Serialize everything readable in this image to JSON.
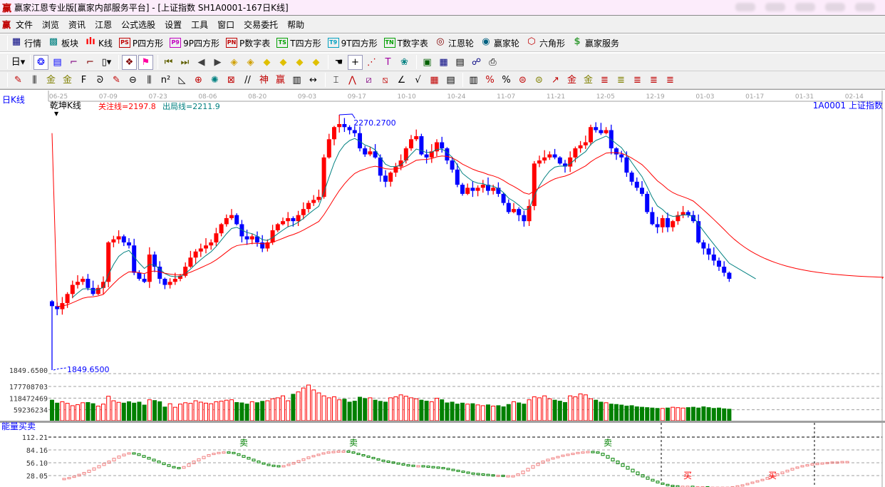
{
  "title": {
    "logo": "赢",
    "text": "赢家江恩专业版[赢家内部服务平台] - [上证指数  SH1A0001-167日K线]"
  },
  "menu": {
    "logo": "赢",
    "items": [
      "文件",
      "浏览",
      "资讯",
      "江恩",
      "公式选股",
      "设置",
      "工具",
      "窗口",
      "交易委托",
      "帮助"
    ]
  },
  "toolbar1": [
    {
      "icon": "quote-table-icon",
      "glyph": "▦",
      "color": "#000080",
      "label": "行情"
    },
    {
      "icon": "sector-icon",
      "glyph": "▩",
      "color": "#008080",
      "label": "板块"
    },
    {
      "icon": "kline-icon",
      "glyph": "ılı",
      "color": "#ff0000",
      "label": "K线"
    },
    {
      "icon": "ps-icon",
      "glyph": "PS",
      "color": "#c00000",
      "label": "P四方形"
    },
    {
      "icon": "p9-icon",
      "glyph": "P9",
      "color": "#c000c0",
      "label": "9P四方形"
    },
    {
      "icon": "pn-icon",
      "glyph": "PN",
      "color": "#c00000",
      "label": "P数字表"
    },
    {
      "icon": "ts-icon",
      "glyph": "TS",
      "color": "#00a000",
      "label": "T四方形"
    },
    {
      "icon": "t9-icon",
      "glyph": "T9",
      "color": "#00a0c0",
      "label": "9T四方形"
    },
    {
      "icon": "tn-icon",
      "glyph": "TN",
      "color": "#00a000",
      "label": "T数字表"
    },
    {
      "icon": "gann-wheel-icon",
      "glyph": "◎",
      "color": "#800000",
      "label": "江恩轮"
    },
    {
      "icon": "big-wheel-icon",
      "glyph": "◉",
      "color": "#006080",
      "label": "赢家轮"
    },
    {
      "icon": "hexagon-icon",
      "glyph": "⬡",
      "color": "#c00000",
      "label": "六角形"
    },
    {
      "icon": "dollar-icon",
      "glyph": "$",
      "color": "#40a040",
      "label": "赢家服务"
    }
  ],
  "toolbar2": [
    {
      "icon": "period-day-dropdown",
      "glyph": "日▾",
      "color": "#000"
    },
    {
      "icon": "sep"
    },
    {
      "icon": "pattern-icon",
      "glyph": "❂",
      "color": "#0000ff",
      "on": true
    },
    {
      "icon": "clipboard-icon",
      "glyph": "▤",
      "color": "#0000ff"
    },
    {
      "icon": "step3-icon",
      "glyph": "⌐",
      "color": "#800080"
    },
    {
      "icon": "step9-icon",
      "glyph": "⌐",
      "color": "#800000"
    },
    {
      "icon": "candle-dropdown",
      "glyph": "▯▾",
      "color": "#000"
    },
    {
      "icon": "sep"
    },
    {
      "icon": "map-icon",
      "glyph": "❖",
      "color": "#800000",
      "on": true
    },
    {
      "icon": "flag-icon",
      "glyph": "⚑",
      "color": "#ff00a0",
      "on": true
    },
    {
      "icon": "sep"
    },
    {
      "icon": "first-icon",
      "glyph": "⏮",
      "color": "#606000"
    },
    {
      "icon": "last-icon",
      "glyph": "⏭",
      "color": "#606000"
    },
    {
      "icon": "prev-icon",
      "glyph": "◀",
      "color": "#404040"
    },
    {
      "icon": "next-icon",
      "glyph": "▶",
      "color": "#404040"
    },
    {
      "icon": "move-left-icon",
      "glyph": "◈",
      "color": "#d0a000"
    },
    {
      "icon": "move-right-icon",
      "glyph": "◈",
      "color": "#d0a000"
    },
    {
      "icon": "expand-h-icon",
      "glyph": "◆",
      "color": "#e0c000"
    },
    {
      "icon": "shrink-icon",
      "glyph": "◆",
      "color": "#e0c000"
    },
    {
      "icon": "expand-v-icon",
      "glyph": "◆",
      "color": "#e0c000"
    },
    {
      "icon": "expand-all-icon",
      "glyph": "◆",
      "color": "#e0c000"
    },
    {
      "icon": "sep"
    },
    {
      "icon": "hand-icon",
      "glyph": "☚",
      "color": "#000"
    },
    {
      "icon": "crosshair-icon",
      "glyph": "+",
      "color": "#000",
      "on": true
    },
    {
      "icon": "point-line-icon",
      "glyph": "⋰",
      "color": "#c00000"
    },
    {
      "icon": "t-shape-icon",
      "glyph": "T",
      "color": "#a000a0"
    },
    {
      "icon": "brain-icon",
      "glyph": "❀",
      "color": "#008080"
    },
    {
      "icon": "sep"
    },
    {
      "icon": "calendar-icon",
      "glyph": "▣",
      "color": "#006000"
    },
    {
      "icon": "calculator-icon",
      "glyph": "▦",
      "color": "#000080"
    },
    {
      "icon": "notes-icon",
      "glyph": "▤",
      "color": "#000"
    },
    {
      "icon": "network-icon",
      "glyph": "☍",
      "color": "#000080"
    },
    {
      "icon": "print-icon",
      "glyph": "⎙",
      "color": "#000"
    }
  ],
  "toolbar3": [
    {
      "icon": "pen-icon",
      "glyph": "✎",
      "color": "#c00000"
    },
    {
      "icon": "lines-icon",
      "glyph": "⫼",
      "color": "#000"
    },
    {
      "icon": "gold-icon",
      "glyph": "金",
      "color": "#808000"
    },
    {
      "icon": "gold2-icon",
      "glyph": "金",
      "color": "#808000"
    },
    {
      "icon": "fib-icon",
      "glyph": "F",
      "color": "#000"
    },
    {
      "icon": "spiral-icon",
      "glyph": "ᘐ",
      "color": "#000"
    },
    {
      "icon": "pen2-icon",
      "glyph": "✎",
      "color": "#c00000"
    },
    {
      "icon": "circle-icon",
      "glyph": "⊖",
      "color": "#000"
    },
    {
      "icon": "lines2-icon",
      "glyph": "⫼",
      "color": "#000"
    },
    {
      "icon": "n2-icon",
      "glyph": "n²",
      "color": "#000"
    },
    {
      "icon": "triangle-icon",
      "glyph": "◺",
      "color": "#000"
    },
    {
      "icon": "target-icon",
      "glyph": "⊕",
      "color": "#c00000"
    },
    {
      "icon": "web-icon",
      "glyph": "✺",
      "color": "#008080"
    },
    {
      "icon": "box-web-icon",
      "glyph": "⊠",
      "color": "#c00000"
    },
    {
      "icon": "slash-icon",
      "glyph": "//",
      "color": "#000"
    },
    {
      "icon": "shen-icon",
      "glyph": "神",
      "color": "#c00000"
    },
    {
      "icon": "ying-icon",
      "glyph": "赢",
      "color": "#c00000"
    },
    {
      "icon": "ruler-icon",
      "glyph": "▥",
      "color": "#000"
    },
    {
      "icon": "width-icon",
      "glyph": "↔",
      "color": "#000"
    },
    {
      "icon": "sep"
    },
    {
      "icon": "box-icon",
      "glyph": "⌶",
      "color": "#000"
    },
    {
      "icon": "fan-icon",
      "glyph": "⋀",
      "color": "#c00000"
    },
    {
      "icon": "fan-box-icon",
      "glyph": "⧄",
      "color": "#800080"
    },
    {
      "icon": "fan-box2-icon",
      "glyph": "⧅",
      "color": "#c00000"
    },
    {
      "icon": "angle-icon",
      "glyph": "∠",
      "color": "#000"
    },
    {
      "icon": "v-icon",
      "glyph": "√",
      "color": "#000"
    },
    {
      "icon": "grid-icon",
      "glyph": "▦",
      "color": "#c00000"
    },
    {
      "icon": "bars-icon",
      "glyph": "▤",
      "color": "#000"
    },
    {
      "icon": "sep"
    },
    {
      "icon": "table-icon",
      "glyph": "▥",
      "color": "#000"
    },
    {
      "icon": "percent-slash-icon",
      "glyph": "%",
      "color": "#c00000"
    },
    {
      "icon": "percent-icon",
      "glyph": "%",
      "color": "#000"
    },
    {
      "icon": "ring-icon",
      "glyph": "⊜",
      "color": "#c00000"
    },
    {
      "icon": "ring2-icon",
      "glyph": "⊜",
      "color": "#808000"
    },
    {
      "icon": "arrow-up-icon",
      "glyph": "↗",
      "color": "#c00000"
    },
    {
      "icon": "gold3-icon",
      "glyph": "金",
      "color": "#c00000"
    },
    {
      "icon": "gold4-icon",
      "glyph": "金",
      "color": "#808000"
    },
    {
      "icon": "line-set-icon",
      "glyph": "≣",
      "color": "#c00000"
    },
    {
      "icon": "line-set2-icon",
      "glyph": "≣",
      "color": "#808000"
    },
    {
      "icon": "line-set3-icon",
      "glyph": "≣",
      "color": "#c00000"
    },
    {
      "icon": "line-set4-icon",
      "glyph": "≣",
      "color": "#c00000"
    },
    {
      "icon": "line-set5-icon",
      "glyph": "≣",
      "color": "#c00000"
    }
  ],
  "chart_header": {
    "period": "日K线",
    "indicator": "乾坤K线",
    "focus_line": "关注线=2197.8",
    "exit_line": "出局线=2211.9",
    "symbol": "1A0001  上证指数",
    "dates": [
      "06-25",
      "07-09",
      "07-23",
      "08-06",
      "08-20",
      "09-03",
      "09-17",
      "10-10",
      "10-24",
      "11-07",
      "11-21",
      "12-05",
      "12-19",
      "01-03",
      "01-17",
      "01-31",
      "02-14"
    ]
  },
  "colors": {
    "up": "#ff0000",
    "down": "#0000ff",
    "ma_short": "#008080",
    "ma_long": "#ff0000",
    "vol_up": "#ff0000",
    "vol_down": "#008000",
    "energy_up": "#f08080",
    "energy_down": "#008000",
    "accent": "#0000ff"
  },
  "chart_data": [
    {
      "type": "candlestick",
      "title": "乾坤K线",
      "high_label": "2270.2700",
      "low_label": "1849.6500",
      "left_tick": "1849.6500",
      "max": 2270.27,
      "min": 1849.65,
      "closes": [
        1955,
        1950,
        1960,
        1975,
        1990,
        1995,
        2000,
        1985,
        1975,
        1985,
        1995,
        2060,
        2065,
        2070,
        2060,
        2055,
        2010,
        2000,
        1995,
        2040,
        2020,
        2000,
        1990,
        1995,
        2000,
        2005,
        2020,
        2035,
        2045,
        2050,
        2055,
        2060,
        2075,
        2090,
        2100,
        2105,
        2090,
        2070,
        2065,
        2070,
        2060,
        2050,
        2060,
        2080,
        2090,
        2095,
        2100,
        2095,
        2105,
        2115,
        2125,
        2130,
        2135,
        2200,
        2230,
        2250,
        2255,
        2250,
        2245,
        2240,
        2215,
        2205,
        2210,
        2200,
        2170,
        2160,
        2175,
        2185,
        2195,
        2215,
        2230,
        2235,
        2205,
        2200,
        2210,
        2225,
        2215,
        2195,
        2180,
        2155,
        2140,
        2150,
        2145,
        2150,
        2155,
        2145,
        2150,
        2140,
        2125,
        2110,
        2115,
        2105,
        2095,
        2120,
        2190,
        2195,
        2200,
        2205,
        2200,
        2190,
        2185,
        2200,
        2215,
        2220,
        2225,
        2250,
        2245,
        2240,
        2245,
        2215,
        2205,
        2200,
        2175,
        2160,
        2150,
        2140,
        2110,
        2090,
        2085,
        2100,
        2085,
        2095,
        2105,
        2110,
        2105,
        2095,
        2060,
        2050,
        2040,
        2030,
        2020,
        2010,
        2000
      ]
    },
    {
      "type": "bar",
      "title": "",
      "y_ticks": [
        "177708703",
        "118472469",
        "59236234"
      ],
      "y_tick_values": [
        177708703,
        118472469,
        59236234
      ],
      "volumes_millions": [
        110,
        95,
        100,
        92,
        80,
        85,
        95,
        98,
        92,
        78,
        88,
        128,
        105,
        97,
        95,
        102,
        95,
        100,
        85,
        110,
        108,
        102,
        75,
        90,
        72,
        88,
        95,
        92,
        105,
        98,
        93,
        90,
        100,
        103,
        108,
        110,
        98,
        96,
        90,
        100,
        97,
        104,
        105,
        115,
        120,
        130,
        105,
        140,
        150,
        170,
        185,
        160,
        145,
        130,
        120,
        125,
        110,
        115,
        100,
        105,
        125,
        118,
        120,
        110,
        104,
        100,
        120,
        125,
        135,
        128,
        120,
        115,
        110,
        105,
        100,
        118,
        112,
        96,
        100,
        90,
        95,
        88,
        92,
        84,
        80,
        86,
        78,
        82,
        76,
        88,
        100,
        96,
        90,
        110,
        125,
        120,
        130,
        115,
        110,
        105,
        98,
        130,
        125,
        140,
        135,
        115,
        110,
        100,
        95,
        90,
        88,
        85,
        80,
        82,
        76,
        74,
        72,
        70,
        68,
        66,
        70,
        72,
        70,
        68,
        72,
        74,
        70,
        76,
        72,
        68,
        70,
        66,
        64
      ]
    },
    {
      "type": "bar",
      "title": "能量买卖",
      "y_ticks": [
        "112.21",
        "84.16",
        "56.10",
        "28.05"
      ],
      "y_tick_values": [
        112.21,
        84.16,
        56.1,
        28.05
      ],
      "values": [
        22,
        24,
        27,
        31,
        35,
        40,
        45,
        50,
        55,
        60,
        66,
        71,
        75,
        78,
        76,
        72,
        68,
        64,
        60,
        56,
        52,
        48,
        46,
        44,
        48,
        54,
        60,
        65,
        70,
        74,
        77,
        79,
        80,
        79,
        76,
        72,
        68,
        64,
        60,
        56,
        53,
        51,
        50,
        49,
        50,
        53,
        57,
        61,
        65,
        69,
        72,
        75,
        78,
        80,
        81,
        82,
        82,
        80,
        77,
        74,
        71,
        68,
        65,
        62,
        60,
        58,
        56,
        54,
        52,
        51,
        50,
        50,
        49,
        48,
        47,
        46,
        44,
        42,
        40,
        38,
        36,
        34,
        33,
        32,
        31,
        30,
        29,
        29,
        28,
        28,
        28,
        32,
        38,
        44,
        50,
        55,
        60,
        64,
        67,
        70,
        73,
        75,
        77,
        79,
        80,
        81,
        80,
        77,
        72,
        66,
        60,
        54,
        48,
        42,
        36,
        30,
        25,
        20,
        16,
        12,
        9,
        7,
        6,
        5,
        5,
        5,
        4,
        4,
        4,
        3,
        3,
        3,
        3,
        3,
        4,
        6,
        8,
        11,
        14,
        17,
        20,
        24,
        28,
        32,
        36,
        40,
        44,
        47,
        50,
        52,
        54,
        55,
        56,
        57,
        58,
        58,
        59,
        59
      ],
      "signals": [
        {
          "text": "卖",
          "index": 36,
          "kind": "sell"
        },
        {
          "text": "卖",
          "index": 58,
          "kind": "sell"
        },
        {
          "text": "卖",
          "index": 109,
          "kind": "sell"
        },
        {
          "text": "买",
          "index": 125,
          "kind": "buy"
        },
        {
          "text": "买",
          "index": 142,
          "kind": "buy"
        }
      ]
    }
  ]
}
